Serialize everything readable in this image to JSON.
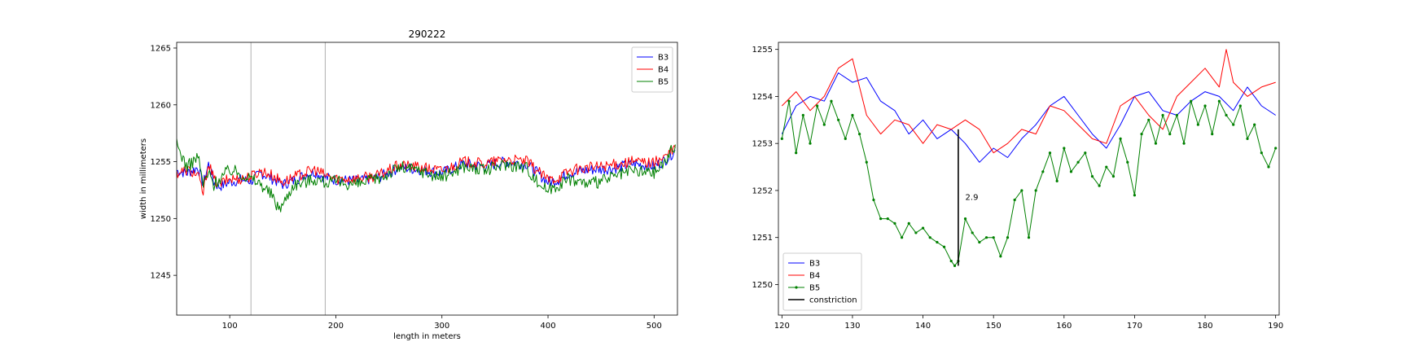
{
  "chart_data": [
    {
      "type": "line",
      "title": "290222",
      "xlabel": "length in meters",
      "ylabel": "width in millimeters",
      "xlim": [
        50,
        522
      ],
      "ylim": [
        1241.5,
        1265.5
      ],
      "xticks": [
        100,
        200,
        300,
        400,
        500
      ],
      "yticks": [
        1245,
        1250,
        1255,
        1260,
        1265
      ],
      "vlines": [
        120,
        190
      ],
      "legend_position": "top-right",
      "grid": false,
      "series": [
        {
          "name": "B3",
          "color": "#0000ff",
          "x": [
            50,
            60,
            70,
            75,
            80,
            85,
            90,
            100,
            110,
            120,
            130,
            140,
            150,
            160,
            170,
            180,
            190,
            200,
            220,
            240,
            260,
            280,
            300,
            320,
            340,
            360,
            380,
            390,
            400,
            410,
            420,
            440,
            460,
            480,
            500,
            510,
            520
          ],
          "y": [
            1254.2,
            1254.0,
            1254.5,
            1253.0,
            1254.8,
            1253.2,
            1252.8,
            1253.2,
            1253.4,
            1253.3,
            1254.0,
            1253.5,
            1253.0,
            1253.3,
            1253.8,
            1254.1,
            1253.6,
            1253.4,
            1253.3,
            1253.6,
            1254.5,
            1254.3,
            1254.0,
            1254.8,
            1254.6,
            1255.0,
            1254.8,
            1254.0,
            1253.2,
            1253.4,
            1254.0,
            1254.3,
            1254.4,
            1254.8,
            1254.6,
            1255.1,
            1256.0
          ]
        },
        {
          "name": "B4",
          "color": "#ff0000",
          "x": [
            50,
            60,
            70,
            75,
            80,
            85,
            90,
            100,
            110,
            120,
            130,
            140,
            150,
            160,
            170,
            180,
            190,
            200,
            220,
            240,
            260,
            280,
            300,
            320,
            340,
            360,
            380,
            390,
            400,
            410,
            420,
            440,
            460,
            480,
            500,
            510,
            520
          ],
          "y": [
            1254.0,
            1254.3,
            1253.8,
            1252.2,
            1255.0,
            1253.4,
            1253.0,
            1253.5,
            1253.5,
            1253.7,
            1254.2,
            1253.8,
            1253.2,
            1253.6,
            1254.0,
            1254.3,
            1253.8,
            1253.5,
            1253.5,
            1253.8,
            1254.7,
            1254.5,
            1254.2,
            1255.0,
            1254.8,
            1255.2,
            1255.0,
            1254.2,
            1253.4,
            1253.6,
            1254.2,
            1254.5,
            1254.7,
            1255.0,
            1254.9,
            1255.4,
            1256.2
          ]
        },
        {
          "name": "B5",
          "color": "#008000",
          "x": [
            50,
            55,
            60,
            70,
            75,
            80,
            85,
            90,
            100,
            110,
            120,
            130,
            140,
            145,
            150,
            160,
            170,
            180,
            190,
            200,
            220,
            240,
            260,
            280,
            300,
            320,
            340,
            360,
            380,
            390,
            400,
            410,
            420,
            440,
            460,
            480,
            500,
            510,
            520
          ],
          "y": [
            1256.5,
            1255.5,
            1254.5,
            1255.5,
            1253.0,
            1254.0,
            1253.0,
            1253.5,
            1254.3,
            1254.0,
            1253.5,
            1253.0,
            1252.0,
            1251.0,
            1251.2,
            1253.0,
            1253.2,
            1253.5,
            1253.2,
            1253.2,
            1253.0,
            1253.5,
            1254.5,
            1254.2,
            1253.6,
            1254.6,
            1254.2,
            1254.8,
            1254.5,
            1253.2,
            1252.5,
            1253.0,
            1253.5,
            1253.0,
            1253.6,
            1254.2,
            1254.0,
            1255.0,
            1256.5
          ]
        }
      ]
    },
    {
      "type": "line",
      "xlim": [
        119.5,
        190.5
      ],
      "ylim": [
        1249.35,
        1255.15
      ],
      "xticks": [
        120,
        130,
        140,
        150,
        160,
        170,
        180,
        190
      ],
      "yticks": [
        1250,
        1251,
        1252,
        1253,
        1254,
        1255
      ],
      "legend_position": "lower-left",
      "grid": false,
      "series": [
        {
          "name": "B3",
          "color": "#0000ff",
          "x": [
            120,
            122,
            124,
            126,
            128,
            130,
            132,
            134,
            136,
            138,
            140,
            142,
            144,
            146,
            148,
            150,
            152,
            154,
            156,
            158,
            160,
            162,
            164,
            166,
            168,
            170,
            172,
            174,
            176,
            178,
            180,
            182,
            184,
            186,
            188,
            190
          ],
          "y": [
            1253.2,
            1253.8,
            1254.0,
            1253.9,
            1254.5,
            1254.3,
            1254.4,
            1253.9,
            1253.7,
            1253.2,
            1253.5,
            1253.1,
            1253.3,
            1253.0,
            1252.6,
            1252.9,
            1252.7,
            1253.1,
            1253.4,
            1253.8,
            1254.0,
            1253.6,
            1253.2,
            1252.9,
            1253.4,
            1254.0,
            1254.1,
            1253.7,
            1253.6,
            1253.9,
            1254.1,
            1254.0,
            1253.7,
            1254.2,
            1253.8,
            1253.6
          ]
        },
        {
          "name": "B4",
          "color": "#ff0000",
          "x": [
            120,
            122,
            124,
            126,
            128,
            130,
            132,
            134,
            136,
            138,
            140,
            142,
            144,
            146,
            148,
            150,
            152,
            154,
            156,
            158,
            160,
            162,
            164,
            166,
            168,
            170,
            172,
            174,
            176,
            178,
            180,
            182,
            183,
            184,
            186,
            188,
            190
          ],
          "y": [
            1253.8,
            1254.1,
            1253.7,
            1254.0,
            1254.6,
            1254.8,
            1253.6,
            1253.2,
            1253.5,
            1253.4,
            1253.0,
            1253.4,
            1253.3,
            1253.5,
            1253.3,
            1252.8,
            1253.0,
            1253.3,
            1253.2,
            1253.8,
            1253.7,
            1253.4,
            1253.1,
            1253.0,
            1253.8,
            1254.0,
            1253.6,
            1253.3,
            1254.0,
            1254.3,
            1254.6,
            1254.2,
            1255.0,
            1254.3,
            1254.0,
            1254.2,
            1254.3
          ]
        },
        {
          "name": "B5",
          "color": "#008000",
          "x": [
            120,
            121,
            122,
            123,
            124,
            125,
            126,
            127,
            128,
            129,
            130,
            131,
            132,
            133,
            134,
            135,
            136,
            137,
            138,
            139,
            140,
            141,
            142,
            143,
            144,
            144.5,
            145,
            146,
            147,
            148,
            149,
            150,
            151,
            152,
            153,
            154,
            155,
            156,
            157,
            158,
            159,
            160,
            161,
            162,
            163,
            164,
            165,
            166,
            167,
            168,
            169,
            170,
            171,
            172,
            173,
            174,
            175,
            176,
            177,
            178,
            179,
            180,
            181,
            182,
            183,
            184,
            185,
            186,
            187,
            188,
            189,
            190
          ],
          "y": [
            1253.1,
            1253.9,
            1252.8,
            1253.6,
            1253.0,
            1253.8,
            1253.4,
            1253.9,
            1253.5,
            1253.1,
            1253.6,
            1253.2,
            1252.6,
            1251.8,
            1251.4,
            1251.4,
            1251.3,
            1251.0,
            1251.3,
            1251.1,
            1251.2,
            1251.0,
            1250.9,
            1250.8,
            1250.5,
            1250.4,
            1250.5,
            1251.4,
            1251.1,
            1250.9,
            1251.0,
            1251.0,
            1250.6,
            1251.0,
            1251.8,
            1252.0,
            1251.0,
            1252.0,
            1252.4,
            1252.8,
            1252.2,
            1252.9,
            1252.4,
            1252.6,
            1252.8,
            1252.3,
            1252.1,
            1252.5,
            1252.3,
            1253.1,
            1252.6,
            1251.9,
            1253.2,
            1253.5,
            1253.0,
            1253.6,
            1253.2,
            1253.6,
            1253.0,
            1253.9,
            1253.4,
            1253.8,
            1253.2,
            1253.9,
            1253.6,
            1253.4,
            1253.8,
            1253.1,
            1253.4,
            1252.8,
            1252.5,
            1252.9
          ]
        },
        {
          "name": "constriction",
          "color": "#000000",
          "x": [
            145,
            145
          ],
          "y": [
            1253.3,
            1250.4
          ]
        }
      ],
      "annotations": [
        {
          "text": "2.9",
          "x": 146,
          "y": 1251.8
        }
      ]
    }
  ]
}
